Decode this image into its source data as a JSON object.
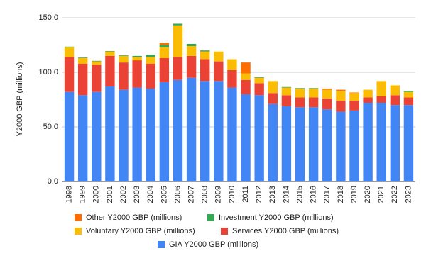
{
  "chart_data": {
    "type": "stacked-bar",
    "y_label": "Y2000 GBP (millions)",
    "categories": [
      "1998",
      "1999",
      "2000",
      "2001",
      "2002",
      "2003",
      "2004",
      "2005",
      "2006",
      "2007",
      "2008",
      "2009",
      "2010",
      "2011",
      "2012",
      "2013",
      "2014",
      "2015",
      "2016",
      "2017",
      "2018",
      "2019",
      "2020",
      "2021",
      "2022",
      "2023"
    ],
    "series": [
      {
        "name": "GIA Y2000 GBP (millions)",
        "color": "#4285f4",
        "values": [
          82,
          79,
          82,
          87,
          84,
          86,
          85,
          91,
          93,
          95,
          92,
          92,
          86,
          80,
          79,
          71,
          69,
          68,
          68,
          66,
          64,
          65,
          72,
          72,
          70,
          70
        ]
      },
      {
        "name": "Services Y2000 GBP (millions)",
        "color": "#ea4335",
        "values": [
          32,
          29,
          25,
          28,
          25,
          25,
          23,
          22,
          21,
          20,
          20,
          18,
          16,
          13,
          11,
          10,
          10,
          9,
          9,
          10,
          10,
          9,
          5,
          6,
          9,
          7
        ]
      },
      {
        "name": "Voluntary Y2000 GBP (millions)",
        "color": "#fbbc04",
        "values": [
          9,
          5,
          3,
          4,
          6,
          3,
          6,
          10,
          29,
          9,
          7,
          9,
          10,
          6,
          5,
          11,
          7,
          8,
          8,
          8,
          9,
          7,
          7,
          14,
          9,
          5
        ]
      },
      {
        "name": "Investment Y2000 GBP (millions)",
        "color": "#34a853",
        "values": [
          0.5,
          0.5,
          0.5,
          0.5,
          0.5,
          1,
          2,
          2,
          1.5,
          2,
          1,
          0,
          0,
          0,
          0.5,
          0,
          0.5,
          0.5,
          0.5,
          0,
          0,
          0,
          0,
          0,
          0,
          1
        ]
      },
      {
        "name": "Other Y2000 GBP (millions)",
        "color": "#ff6d01",
        "values": [
          0,
          0,
          0,
          0,
          0,
          0,
          0,
          2,
          0,
          0,
          0,
          0,
          0,
          10,
          0,
          0,
          0,
          0,
          0,
          1,
          1,
          0.5,
          0,
          0,
          0,
          0
        ]
      }
    ],
    "ylim": [
      0,
      150
    ],
    "yticks": [
      {
        "value": 0,
        "label": "0.0"
      },
      {
        "value": 50,
        "label": "50.0"
      },
      {
        "value": 100,
        "label": "100.0"
      },
      {
        "value": 150,
        "label": "150.0"
      }
    ],
    "grid": true
  }
}
